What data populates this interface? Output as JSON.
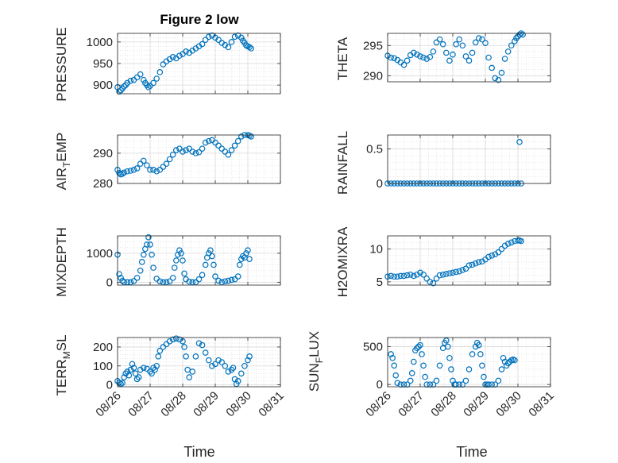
{
  "colors": {
    "marker": "#0072BD",
    "grid": "#d9d9d9",
    "axis": "#262626",
    "background": "#ffffff"
  },
  "chart_data": [
    {
      "type": "scatter",
      "title": "Figure 2 low",
      "ylabel": "PRESSURE",
      "xlim": [
        0,
        5
      ],
      "ylim": [
        880,
        1020
      ],
      "yticks": [
        900,
        950,
        1000
      ],
      "ytick_labels": [
        "900",
        "950",
        "1000"
      ],
      "grid": true,
      "x": [
        0.0,
        0.05,
        0.1,
        0.15,
        0.2,
        0.25,
        0.3,
        0.4,
        0.5,
        0.6,
        0.7,
        0.8,
        0.85,
        0.9,
        0.95,
        1.0,
        1.1,
        1.2,
        1.3,
        1.4,
        1.5,
        1.6,
        1.7,
        1.8,
        1.9,
        2.0,
        2.1,
        2.2,
        2.3,
        2.4,
        2.5,
        2.6,
        2.7,
        2.8,
        2.9,
        3.0,
        3.1,
        3.2,
        3.3,
        3.4,
        3.5,
        3.6,
        3.7,
        3.8,
        3.85,
        3.9,
        3.95,
        4.0,
        4.05,
        4.1
      ],
      "y": [
        895,
        885,
        888,
        892,
        897,
        900,
        905,
        910,
        912,
        918,
        925,
        912,
        905,
        900,
        895,
        898,
        905,
        915,
        930,
        948,
        955,
        960,
        965,
        962,
        968,
        972,
        978,
        975,
        980,
        985,
        990,
        995,
        1005,
        1012,
        1015,
        1010,
        1005,
        998,
        993,
        988,
        1000,
        1012,
        1015,
        1010,
        1003,
        998,
        992,
        990,
        988,
        985
      ]
    },
    {
      "type": "scatter",
      "ylabel": "THETA",
      "xlim": [
        0,
        5
      ],
      "ylim": [
        289,
        297
      ],
      "yticks": [
        290,
        295
      ],
      "ytick_labels": [
        "290",
        "295"
      ],
      "grid": true,
      "x": [
        0.0,
        0.1,
        0.2,
        0.3,
        0.4,
        0.5,
        0.6,
        0.7,
        0.8,
        0.9,
        1.0,
        1.1,
        1.2,
        1.3,
        1.4,
        1.5,
        1.6,
        1.7,
        1.8,
        1.9,
        2.0,
        2.1,
        2.2,
        2.3,
        2.4,
        2.5,
        2.6,
        2.7,
        2.8,
        2.9,
        3.0,
        3.1,
        3.2,
        3.3,
        3.4,
        3.5,
        3.6,
        3.7,
        3.8,
        3.9,
        3.95,
        4.0,
        4.05,
        4.1,
        4.15
      ],
      "y": [
        293.3,
        293.0,
        292.9,
        292.6,
        292.2,
        291.8,
        292.5,
        293.4,
        293.8,
        293.5,
        293.2,
        293.0,
        292.8,
        293.1,
        294.0,
        295.5,
        296.0,
        295.2,
        293.8,
        292.5,
        293.5,
        295.2,
        296.0,
        295.0,
        293.2,
        292.5,
        293.8,
        295.5,
        296.2,
        296.0,
        295.4,
        293.0,
        291.3,
        289.6,
        289.3,
        290.5,
        292.8,
        294.0,
        295.0,
        295.7,
        296.2,
        296.5,
        296.8,
        297.0,
        296.8
      ]
    },
    {
      "type": "scatter",
      "ylabel": "AIR_TEMP",
      "xlim": [
        0,
        5
      ],
      "ylim": [
        280,
        296
      ],
      "yticks": [
        280,
        290
      ],
      "ytick_labels": [
        "280",
        "290"
      ],
      "grid": true,
      "x": [
        0.0,
        0.05,
        0.1,
        0.15,
        0.2,
        0.3,
        0.4,
        0.5,
        0.6,
        0.7,
        0.8,
        0.9,
        1.0,
        1.1,
        1.2,
        1.3,
        1.4,
        1.5,
        1.6,
        1.7,
        1.8,
        1.9,
        2.0,
        2.1,
        2.2,
        2.3,
        2.4,
        2.5,
        2.6,
        2.7,
        2.8,
        2.9,
        3.0,
        3.1,
        3.2,
        3.3,
        3.4,
        3.5,
        3.6,
        3.7,
        3.8,
        3.9,
        4.0,
        4.05,
        4.1
      ],
      "y": [
        284.5,
        283.5,
        283.0,
        283.2,
        283.6,
        284.0,
        284.2,
        284.5,
        285.0,
        286.5,
        287.5,
        286.0,
        284.5,
        284.5,
        284.0,
        284.5,
        285.5,
        286.5,
        288.0,
        289.5,
        291.0,
        291.5,
        290.5,
        291.0,
        291.5,
        290.5,
        290.0,
        290.3,
        291.5,
        293.5,
        294.0,
        294.3,
        293.5,
        292.5,
        291.5,
        290.5,
        289.5,
        291.0,
        292.5,
        294.0,
        295.5,
        296.0,
        296.0,
        295.8,
        295.5
      ]
    },
    {
      "type": "scatter",
      "ylabel": "RAINFALL",
      "xlim": [
        0,
        5
      ],
      "ylim": [
        0,
        0.7
      ],
      "yticks": [
        0,
        0.5
      ],
      "ytick_labels": [
        "0",
        "0.5"
      ],
      "grid": true,
      "x": [
        0.0,
        0.1,
        0.2,
        0.3,
        0.4,
        0.5,
        0.6,
        0.7,
        0.8,
        0.9,
        1.0,
        1.1,
        1.2,
        1.3,
        1.4,
        1.5,
        1.6,
        1.7,
        1.8,
        1.9,
        2.0,
        2.1,
        2.2,
        2.3,
        2.4,
        2.5,
        2.6,
        2.7,
        2.8,
        2.9,
        3.0,
        3.1,
        3.2,
        3.3,
        3.4,
        3.5,
        3.6,
        3.7,
        3.8,
        3.9,
        4.0,
        4.05,
        4.1
      ],
      "y": [
        0,
        0,
        0,
        0,
        0,
        0,
        0,
        0,
        0,
        0,
        0,
        0,
        0,
        0,
        0,
        0,
        0,
        0,
        0,
        0,
        0,
        0,
        0,
        0,
        0,
        0,
        0,
        0,
        0,
        0,
        0,
        0,
        0,
        0,
        0,
        0,
        0,
        0,
        0,
        0,
        0,
        0.6,
        0
      ]
    },
    {
      "type": "scatter",
      "ylabel": "MIXDEPTH",
      "xlim": [
        0,
        5
      ],
      "ylim": [
        -100,
        1600
      ],
      "yticks": [
        0,
        1000
      ],
      "ytick_labels": [
        "0",
        "1000"
      ],
      "grid": true,
      "x": [
        0.0,
        0.05,
        0.1,
        0.15,
        0.2,
        0.3,
        0.4,
        0.5,
        0.6,
        0.7,
        0.75,
        0.8,
        0.85,
        0.9,
        0.95,
        1.0,
        1.05,
        1.1,
        1.2,
        1.3,
        1.4,
        1.5,
        1.6,
        1.7,
        1.75,
        1.8,
        1.85,
        1.9,
        1.95,
        2.0,
        2.05,
        2.1,
        2.2,
        2.3,
        2.4,
        2.5,
        2.6,
        2.7,
        2.75,
        2.8,
        2.85,
        2.9,
        2.95,
        3.0,
        3.1,
        3.2,
        3.3,
        3.4,
        3.5,
        3.6,
        3.7,
        3.75,
        3.8,
        3.85,
        3.9,
        3.95,
        4.0,
        4.05
      ],
      "y": [
        950,
        280,
        150,
        50,
        0,
        0,
        0,
        40,
        150,
        400,
        700,
        950,
        1150,
        1300,
        1550,
        1300,
        950,
        500,
        120,
        30,
        0,
        0,
        30,
        150,
        500,
        750,
        950,
        1100,
        1000,
        750,
        300,
        100,
        20,
        0,
        0,
        100,
        250,
        600,
        850,
        1000,
        1100,
        900,
        600,
        200,
        50,
        0,
        30,
        50,
        80,
        100,
        200,
        600,
        800,
        900,
        850,
        1000,
        1100,
        800
      ]
    },
    {
      "type": "scatter",
      "ylabel": "H2OMIXRA",
      "xlim": [
        0,
        5
      ],
      "ylim": [
        4.5,
        12
      ],
      "yticks": [
        5,
        10
      ],
      "ytick_labels": [
        "5",
        "10"
      ],
      "grid": true,
      "x": [
        0.0,
        0.1,
        0.2,
        0.3,
        0.4,
        0.5,
        0.6,
        0.7,
        0.8,
        0.9,
        1.0,
        1.1,
        1.2,
        1.3,
        1.4,
        1.5,
        1.6,
        1.7,
        1.8,
        1.9,
        2.0,
        2.1,
        2.2,
        2.3,
        2.4,
        2.5,
        2.6,
        2.7,
        2.8,
        2.9,
        3.0,
        3.1,
        3.2,
        3.3,
        3.4,
        3.5,
        3.6,
        3.7,
        3.8,
        3.9,
        4.0,
        4.05,
        4.1
      ],
      "y": [
        5.8,
        5.9,
        5.8,
        5.8,
        5.9,
        5.9,
        6.0,
        6.1,
        5.9,
        6.1,
        6.4,
        6.1,
        5.5,
        5.0,
        4.8,
        5.5,
        6.0,
        6.1,
        6.2,
        6.3,
        6.4,
        6.5,
        6.6,
        6.8,
        7.0,
        7.5,
        7.6,
        7.8,
        8.0,
        8.1,
        8.4,
        8.8,
        9.0,
        9.2,
        9.5,
        10.0,
        10.5,
        10.8,
        11.0,
        11.2,
        11.3,
        11.3,
        11.2
      ]
    },
    {
      "type": "scatter",
      "ylabel": "TERR_MSL",
      "xlim": [
        0,
        5
      ],
      "ylim": [
        -10,
        250
      ],
      "yticks": [
        0,
        100,
        200
      ],
      "ytick_labels": [
        "0",
        "100",
        "200"
      ],
      "grid": true,
      "x": [
        0.0,
        0.05,
        0.1,
        0.15,
        0.2,
        0.25,
        0.3,
        0.35,
        0.4,
        0.45,
        0.5,
        0.55,
        0.6,
        0.65,
        0.7,
        0.8,
        0.9,
        1.0,
        1.05,
        1.1,
        1.15,
        1.2,
        1.25,
        1.3,
        1.4,
        1.5,
        1.6,
        1.7,
        1.8,
        1.9,
        2.0,
        2.05,
        2.1,
        2.15,
        2.2,
        2.3,
        2.4,
        2.5,
        2.6,
        2.7,
        2.8,
        2.9,
        3.0,
        3.1,
        3.2,
        3.3,
        3.4,
        3.5,
        3.55,
        3.6,
        3.65,
        3.7,
        3.8,
        3.9,
        4.0,
        4.05
      ],
      "y": [
        20,
        10,
        5,
        10,
        40,
        60,
        70,
        50,
        80,
        110,
        90,
        60,
        30,
        40,
        80,
        90,
        85,
        70,
        60,
        90,
        80,
        100,
        150,
        180,
        200,
        215,
        230,
        240,
        245,
        240,
        230,
        200,
        150,
        80,
        40,
        70,
        150,
        220,
        210,
        170,
        130,
        100,
        110,
        130,
        120,
        100,
        70,
        80,
        90,
        30,
        5,
        20,
        60,
        100,
        130,
        150
      ]
    },
    {
      "type": "scatter",
      "ylabel": "SUN_FLUX",
      "xlim": [
        0,
        5
      ],
      "ylim": [
        -30,
        620
      ],
      "yticks": [
        0,
        500
      ],
      "ytick_labels": [
        "0",
        "500"
      ],
      "grid": true,
      "x": [
        0.1,
        0.15,
        0.2,
        0.25,
        0.3,
        0.4,
        0.5,
        0.6,
        0.7,
        0.75,
        0.8,
        0.85,
        0.9,
        0.95,
        1.0,
        1.05,
        1.1,
        1.15,
        1.2,
        1.3,
        1.4,
        1.5,
        1.6,
        1.7,
        1.75,
        1.8,
        1.85,
        1.9,
        1.95,
        2.0,
        2.05,
        2.1,
        2.2,
        2.3,
        2.4,
        2.5,
        2.6,
        2.7,
        2.75,
        2.8,
        2.85,
        2.9,
        2.95,
        3.0,
        3.05,
        3.1,
        3.2,
        3.3,
        3.4,
        3.5,
        3.55,
        3.6,
        3.65,
        3.7,
        3.75,
        3.8,
        3.85,
        3.9
      ],
      "y": [
        400,
        350,
        250,
        120,
        20,
        0,
        0,
        0,
        50,
        150,
        300,
        450,
        480,
        500,
        520,
        400,
        250,
        100,
        0,
        0,
        0,
        50,
        250,
        480,
        550,
        580,
        500,
        350,
        200,
        50,
        0,
        0,
        0,
        0,
        50,
        200,
        400,
        500,
        550,
        520,
        400,
        250,
        100,
        0,
        0,
        0,
        0,
        0,
        50,
        200,
        350,
        300,
        250,
        280,
        300,
        320,
        330,
        320
      ]
    }
  ],
  "xaxis": {
    "tick_labels": [
      "08/26",
      "08/27",
      "08/28",
      "08/29",
      "08/30",
      "08/31"
    ],
    "label": "Time"
  },
  "labels": {
    "title": "Figure 2 low",
    "p1_ylabel": "PRESSURE",
    "p2_ylabel": "THETA",
    "p3_ylabel_main": "AIR",
    "p3_ylabel_sub": "T",
    "p3_ylabel_rest": "EMP",
    "p4_ylabel": "RAINFALL",
    "p5_ylabel": "MIXDEPTH",
    "p6_ylabel": "H2OMIXRA",
    "p7_ylabel_main": "TERR",
    "p7_ylabel_sub": "M",
    "p7_ylabel_rest": "SL",
    "p8_ylabel_main": "SUN",
    "p8_ylabel_sub": "F",
    "p8_ylabel_rest": "LUX",
    "xlabel_left": "Time",
    "xlabel_right": "Time"
  }
}
